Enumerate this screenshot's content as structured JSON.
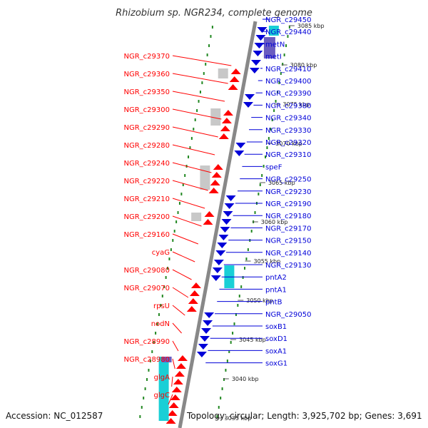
{
  "title": "Rhizobium sp. NGR234, complete genome",
  "footer": {
    "accession": "Accession: NC_012587",
    "topology": "Topology: circular; Length: 3,925,702 bp; Genes: 3,691"
  },
  "colors": {
    "forward": "#ff0000",
    "reverse": "#0000d8",
    "backbone": "#888888",
    "cyan": "#19cfd6",
    "purple": "#6a5cc0",
    "gray": "#c8c8c8",
    "dotted": "#228822"
  },
  "kbp_ticks": [
    "3085 kbp",
    "3080 kbp",
    "3075 kbp",
    "3070 kbp",
    "3065 kbp",
    "3060 kbp",
    "3055 kbp",
    "3050 kbp",
    "3045 kbp",
    "3040 kbp",
    "3035 kbp"
  ],
  "left_labels": [
    "NGR_c29370",
    "NGR_c29360",
    "NGR_c29350",
    "NGR_c29300",
    "NGR_c29290",
    "NGR_c29280",
    "NGR_c29240",
    "NGR_c29220",
    "NGR_c29210",
    "NGR_c29200",
    "NGR_c29160",
    "cyaG",
    "NGR_c29080",
    "NGR_c29070",
    "rpsU",
    "nodN",
    "NGR_c28990",
    "NGR_c28980",
    "glgA",
    "glgC"
  ],
  "right_labels": [
    "NGR_c29450",
    "NGR_c29440",
    "metN",
    "metI",
    "NGR_c29410",
    "NGR_c29400",
    "NGR_c29390",
    "NGR_c29380",
    "NGR_c29340",
    "NGR_c29330",
    "NGR_c29320",
    "NGR_c29310",
    "speF",
    "NGR_c29250",
    "NGR_c29230",
    "NGR_c29190",
    "NGR_c29180",
    "NGR_c29170",
    "NGR_c29150",
    "NGR_c29140",
    "NGR_c29130",
    "pntA2",
    "pntA1",
    "pntB",
    "NGR_c29050",
    "soxB1",
    "soxD1",
    "soxA1",
    "soxG1"
  ]
}
